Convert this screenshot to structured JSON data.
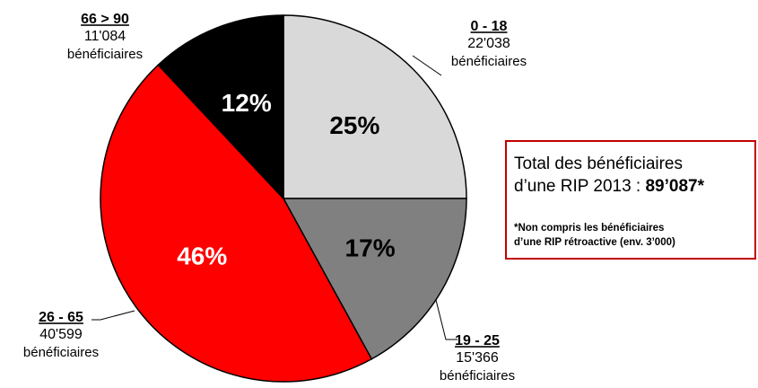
{
  "chart_data": {
    "type": "pie",
    "categories": [
      "0 - 18",
      "19 - 25",
      "26 - 65",
      "66 > 90"
    ],
    "values": [
      25,
      17,
      46,
      12
    ],
    "value_labels": [
      "25%",
      "17%",
      "46%",
      "12%"
    ],
    "colors": [
      "#d9d9d9",
      "#808080",
      "#ff0000",
      "#000000"
    ],
    "counts": [
      22038,
      15366,
      40599,
      11084
    ],
    "count_labels": [
      "22'038",
      "15'366",
      "40'599",
      "11'084"
    ],
    "unit_label": "bénéficiaires",
    "box": {
      "line1": "Total des bénéficiaires",
      "line2": "d’une RIP 2013 : ",
      "total": "89’087*",
      "note1": "*Non compris les bénéficiaires",
      "note2": "d’une RIP rétroactive (env. 3’000)"
    }
  }
}
